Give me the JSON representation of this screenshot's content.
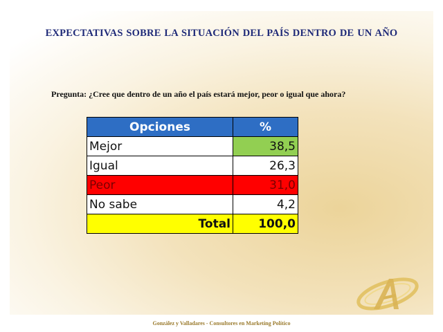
{
  "slide": {
    "title": "EXPECTATIVAS  SOBRE LA SITUACIÓN DEL PAÍS DENTRO DE UN AÑO",
    "question": "Pregunta: ¿Cree que dentro de un año el país estará mejor, peor o igual que ahora?"
  },
  "table": {
    "headers": [
      "Opciones",
      "%"
    ],
    "rows": [
      {
        "label": "Mejor",
        "value": "38,5",
        "highlight": "#92cf52"
      },
      {
        "label": "Igual",
        "value": "26,3"
      },
      {
        "label": "Peor",
        "value": "31,0",
        "highlight": "#ff0000"
      },
      {
        "label": "No sabe",
        "value": "4,2"
      }
    ],
    "total": {
      "label": "Total",
      "value": "100,0"
    }
  },
  "colors": {
    "title": "#1f2a78",
    "header_bg": "#2e6ec4",
    "total_bg": "#ffff00",
    "footer": "#9a7a2c"
  },
  "footer": {
    "text": "González y Valladares - Consultores en Marketing Político",
    "logo_icon": "gv-logo-icon"
  }
}
